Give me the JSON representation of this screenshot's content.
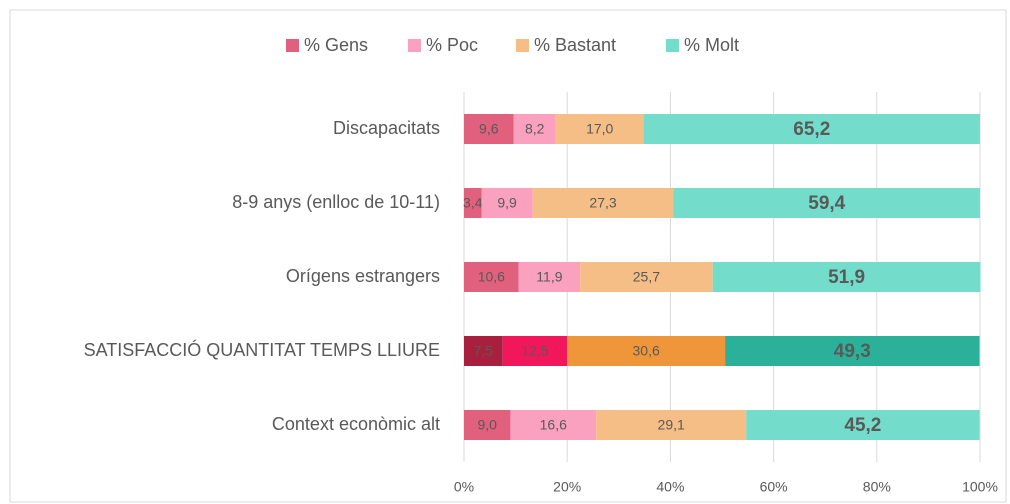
{
  "chart_data": {
    "type": "stacked_barh",
    "categories": [
      "Discapacitats",
      "8-9 anys (enlloc de 10-11)",
      "Orígens estrangers",
      "SATISFACCIÓ QUANTITAT TEMPS LLIURE",
      "Context econòmic alt"
    ],
    "series": [
      {
        "name": "% Gens",
        "color": "#e0607e",
        "colors": [
          "#e0607e",
          "#e0607e",
          "#e0607e",
          "#a8203e",
          "#e0607e"
        ],
        "values": [
          9.6,
          3.4,
          10.6,
          7.5,
          9.0
        ],
        "value_labels": [
          "9,6",
          "3,4",
          "10,6",
          "7,5",
          "9,0"
        ]
      },
      {
        "name": "% Poc",
        "color": "#f9a1be",
        "colors": [
          "#f9a1be",
          "#f9a1be",
          "#f9a1be",
          "#f2165a",
          "#f9a1be"
        ],
        "values": [
          8.2,
          9.9,
          11.9,
          12.5,
          16.6
        ],
        "value_labels": [
          "8,2",
          "9,9",
          "11,9",
          "12,5",
          "16,6"
        ]
      },
      {
        "name": "% Bastant",
        "color": "#f5be86",
        "colors": [
          "#f5be86",
          "#f5be86",
          "#f5be86",
          "#f0963a",
          "#f5be86"
        ],
        "values": [
          17.0,
          27.3,
          25.7,
          30.6,
          29.1
        ],
        "value_labels": [
          "17,0",
          "27,3",
          "25,7",
          "30,6",
          "29,1"
        ]
      },
      {
        "name": "% Molt",
        "color": "#74dccb",
        "colors": [
          "#74dccb",
          "#74dccb",
          "#74dccb",
          "#2bb199",
          "#74dccb"
        ],
        "values": [
          65.2,
          59.4,
          51.9,
          49.3,
          45.2
        ],
        "value_labels": [
          "65,2",
          "59,4",
          "51,9",
          "49,3",
          "45,2"
        ]
      }
    ],
    "xlim": [
      0,
      100
    ],
    "xticks": [
      {
        "value": 0,
        "label": "0%"
      },
      {
        "value": 20,
        "label": "20%"
      },
      {
        "value": 40,
        "label": "40%"
      },
      {
        "value": 60,
        "label": "60%"
      },
      {
        "value": 80,
        "label": "80%"
      },
      {
        "value": 100,
        "label": "100%"
      }
    ],
    "grid": true,
    "legend": "top"
  }
}
